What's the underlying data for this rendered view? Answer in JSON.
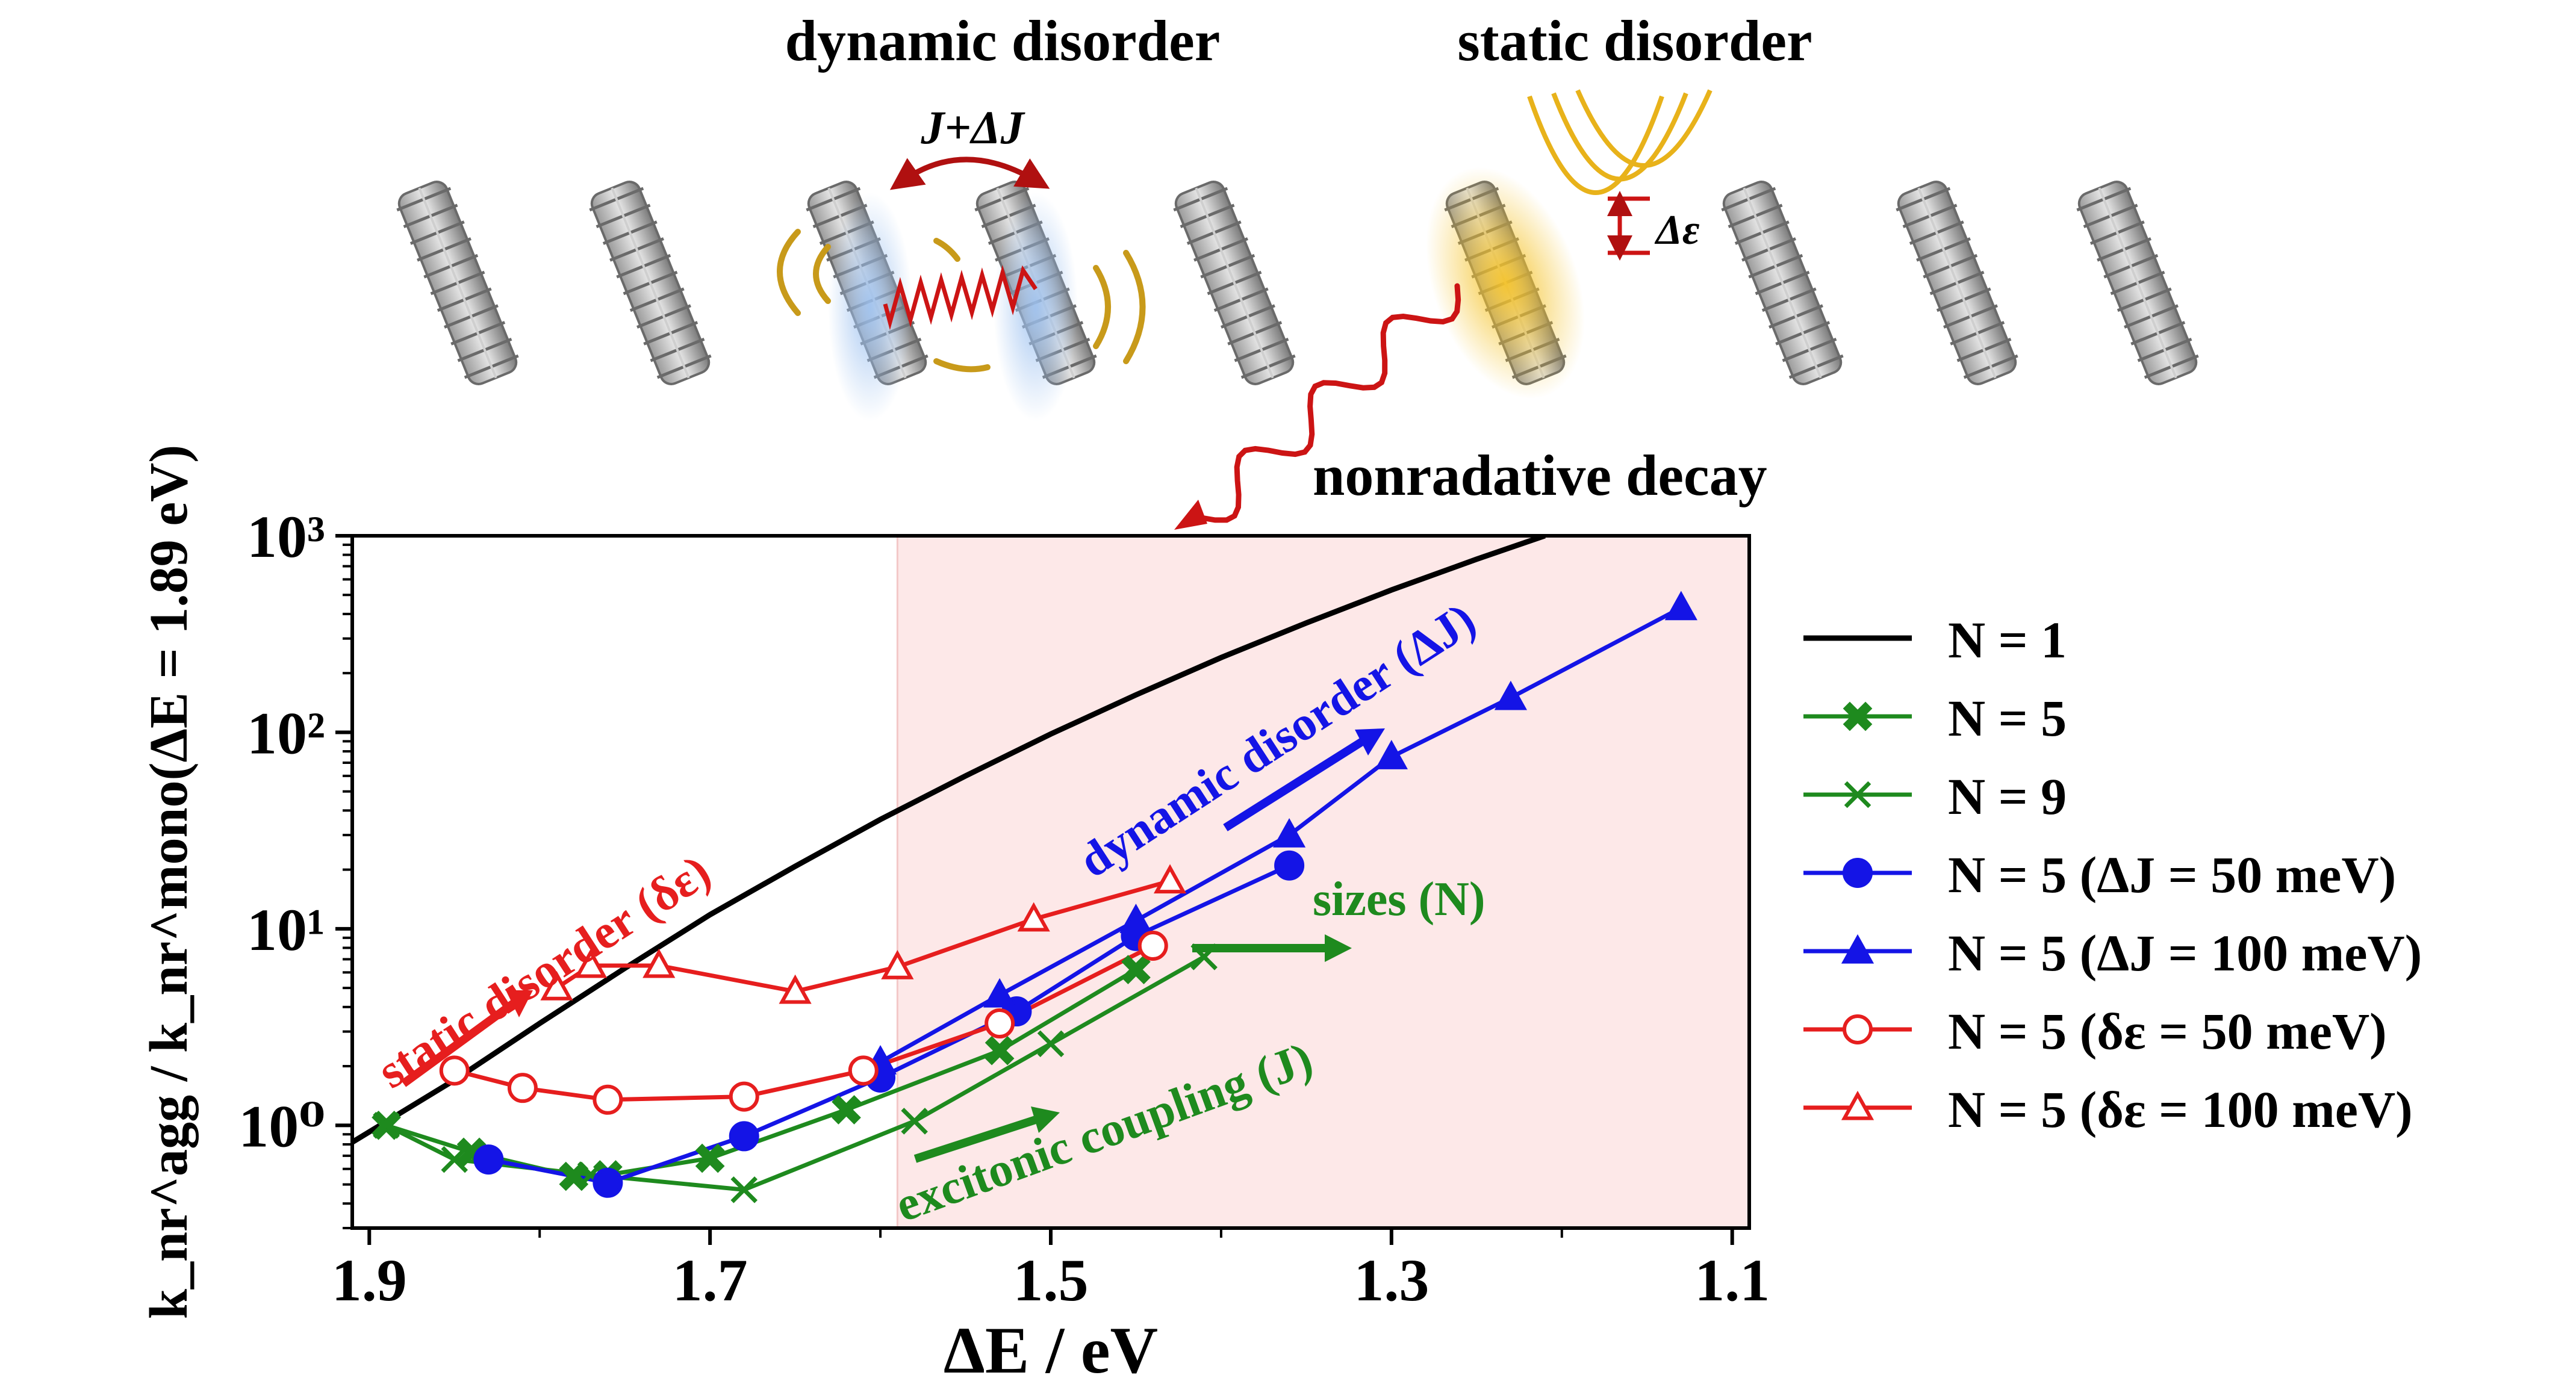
{
  "schematic": {
    "dynamic_label": "dynamic disorder",
    "static_label": "static disorder",
    "coupling_label": "J+ΔJ",
    "energy_label": "Δε",
    "decay_label": "nonradative decay"
  },
  "annotations": {
    "static": "static disorder (δε)",
    "dynamic": "dynamic disorder (ΔJ)",
    "sizes": "sizes (N)",
    "coupling": "excitonic coupling (J)"
  },
  "colors": {
    "black": "#000000",
    "green": "#1e8a1e",
    "blue": "#1414e6",
    "red": "#e61e1e",
    "shade": "#fde8e8",
    "gold": "#d9a21b"
  },
  "chart_data": {
    "type": "line",
    "xlabel": "ΔE / eV",
    "ylabel": "k_nr^agg / k_nr^mono(ΔE = 1.89 eV)",
    "xlim": [
      1.91,
      1.09
    ],
    "ylim": [
      0.3,
      1000
    ],
    "yscale": "log",
    "x_ticks": [
      "1.9",
      "1.7",
      "1.5",
      "1.3",
      "1.1"
    ],
    "y_ticks": [
      "10⁰",
      "10¹",
      "10²",
      "10³"
    ],
    "shaded_region": [
      1.59,
      1.09
    ],
    "legend_position": "right",
    "series": [
      {
        "name": "N = 1",
        "color": "#000000",
        "marker": "none",
        "fill": true,
        "x": [
          1.91,
          1.85,
          1.8,
          1.75,
          1.7,
          1.65,
          1.6,
          1.55,
          1.5,
          1.45,
          1.4,
          1.35,
          1.3,
          1.25,
          1.21
        ],
        "y": [
          0.82,
          1.7,
          3.3,
          6.3,
          11.8,
          20.8,
          36,
          60,
          98,
          155,
          240,
          360,
          530,
          760,
          1000
        ]
      },
      {
        "name": "N = 5",
        "color": "#1e8a1e",
        "marker": "xfill",
        "fill": true,
        "x": [
          1.89,
          1.84,
          1.78,
          1.76,
          1.7,
          1.62,
          1.53,
          1.45
        ],
        "y": [
          1.0,
          0.73,
          0.55,
          0.56,
          0.68,
          1.2,
          2.4,
          6.2
        ]
      },
      {
        "name": "N = 9",
        "color": "#1e8a1e",
        "marker": "x",
        "fill": false,
        "x": [
          1.89,
          1.85,
          1.77,
          1.68,
          1.58,
          1.5,
          1.41
        ],
        "y": [
          1.0,
          0.67,
          0.56,
          0.47,
          1.05,
          2.6,
          7.2
        ]
      },
      {
        "name": "N = 5 (ΔJ = 50 meV)",
        "color": "#1414e6",
        "marker": "circle",
        "fill": true,
        "x": [
          1.83,
          1.76,
          1.68,
          1.6,
          1.52,
          1.45,
          1.36
        ],
        "y": [
          0.67,
          0.51,
          0.88,
          1.75,
          3.8,
          9.2,
          21
        ]
      },
      {
        "name": "N = 5 (ΔJ = 100 meV)",
        "color": "#1414e6",
        "marker": "triangle",
        "fill": true,
        "x": [
          1.6,
          1.53,
          1.45,
          1.36,
          1.3,
          1.23,
          1.13
        ],
        "y": [
          2.1,
          4.6,
          11,
          30,
          75,
          150,
          430
        ]
      },
      {
        "name": "N = 5 (δε = 50 meV)",
        "color": "#e61e1e",
        "marker": "circle",
        "fill": false,
        "x": [
          1.85,
          1.81,
          1.76,
          1.68,
          1.61,
          1.53,
          1.44
        ],
        "y": [
          1.9,
          1.55,
          1.35,
          1.4,
          1.9,
          3.3,
          8.2
        ]
      },
      {
        "name": "N = 5 (δε = 100 meV)",
        "color": "#e61e1e",
        "marker": "triangle",
        "fill": false,
        "x": [
          1.79,
          1.77,
          1.73,
          1.65,
          1.59,
          1.51,
          1.43
        ],
        "y": [
          5.0,
          6.5,
          6.5,
          4.8,
          6.4,
          11.2,
          17.5
        ]
      }
    ]
  }
}
